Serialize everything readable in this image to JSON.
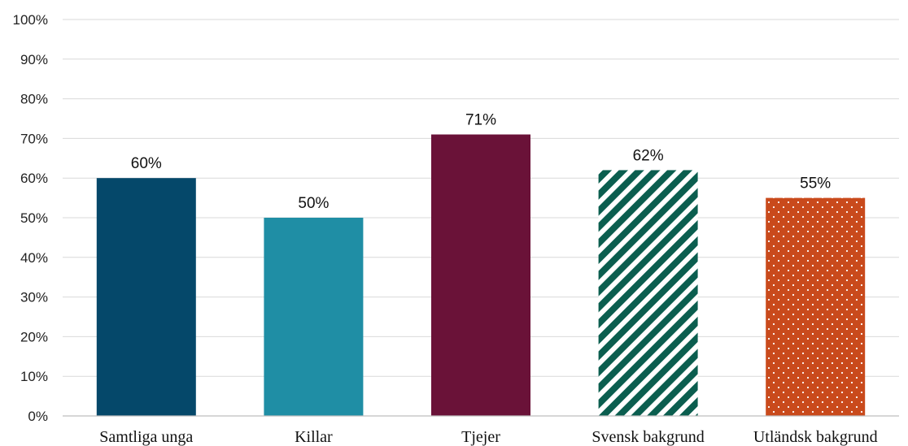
{
  "chart_data": {
    "type": "bar",
    "title": "",
    "xlabel": "",
    "ylabel": "",
    "categories": [
      "Samtliga unga",
      "Killar",
      "Tjejer",
      "Svensk bakgrund",
      "Utländsk bakgrund"
    ],
    "values": [
      60,
      50,
      71,
      62,
      55
    ],
    "data_labels": [
      "60%",
      "50%",
      "71%",
      "62%",
      "55%"
    ],
    "ylim": [
      0,
      100
    ],
    "y_ticks": [
      "0%",
      "10%",
      "20%",
      "30%",
      "40%",
      "50%",
      "60%",
      "70%",
      "80%",
      "90%",
      "100%"
    ],
    "grid": true,
    "legend": "none",
    "bar_styles": [
      {
        "fill": "#05486a",
        "pattern": "solid"
      },
      {
        "fill": "#1f8ea5",
        "pattern": "solid"
      },
      {
        "fill": "#6a1238",
        "pattern": "solid"
      },
      {
        "fill": "#0b5e4f",
        "pattern": "diagonal-stripes"
      },
      {
        "fill": "#c94a1c",
        "pattern": "dots"
      }
    ]
  }
}
